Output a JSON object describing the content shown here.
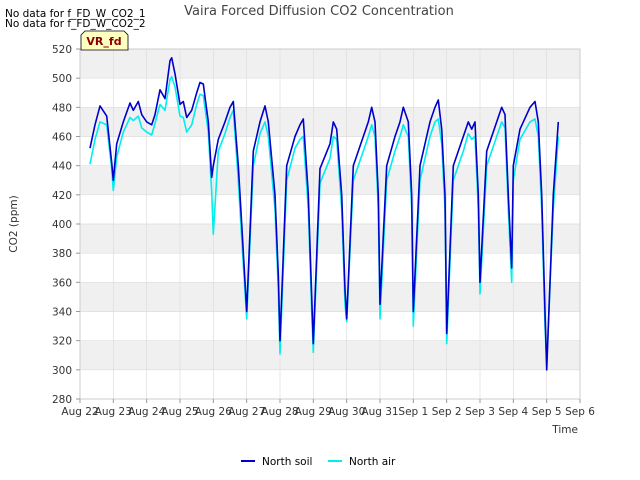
{
  "no_data_notes": [
    "No data for f_FD_W_CO2_1",
    "No data for f_FD_W_CO2_2"
  ],
  "badge": "VR_fd",
  "colors": {
    "north_soil": "#0000cc",
    "north_air": "#00eeee",
    "band": "#f0f0f0",
    "grid": "#dddddd",
    "badge_bg": "#ffffc0"
  },
  "chart_data": {
    "type": "line",
    "title": "Vaira Forced Diffusion CO2 Concentration",
    "xlabel": "Time",
    "ylabel": "CO2 (ppm)",
    "xlim": [
      0,
      15
    ],
    "ylim": [
      280,
      520
    ],
    "x_ticks": [
      0,
      1,
      2,
      3,
      4,
      5,
      6,
      7,
      8,
      9,
      10,
      11,
      12,
      13,
      14,
      15
    ],
    "x_tick_labels": [
      "Aug 22",
      "Aug 23",
      "Aug 24",
      "Aug 25",
      "Aug 26",
      "Aug 27",
      "Aug 28",
      "Aug 29",
      "Aug 30",
      "Aug 31",
      "Sep 1",
      "Sep 2",
      "Sep 3",
      "Sep 4",
      "Sep 5",
      "Sep 6"
    ],
    "y_ticks": [
      280,
      300,
      320,
      340,
      360,
      380,
      400,
      420,
      440,
      460,
      480,
      500,
      520
    ],
    "grid": true,
    "legend_position": "bottom",
    "series": [
      {
        "name": "North soil",
        "color_key": "north_soil",
        "x": [
          0.3,
          0.45,
          0.6,
          0.8,
          0.95,
          1.0,
          1.1,
          1.3,
          1.5,
          1.6,
          1.75,
          1.85,
          2.0,
          2.15,
          2.25,
          2.4,
          2.55,
          2.7,
          2.75,
          2.85,
          3.0,
          3.1,
          3.2,
          3.35,
          3.5,
          3.6,
          3.7,
          3.85,
          3.95,
          4.0,
          4.15,
          4.35,
          4.5,
          4.6,
          4.75,
          4.85,
          5.0,
          5.2,
          5.4,
          5.55,
          5.65,
          5.85,
          5.95,
          6.0,
          6.2,
          6.45,
          6.6,
          6.7,
          6.85,
          6.95,
          7.0,
          7.2,
          7.5,
          7.6,
          7.7,
          7.85,
          7.95,
          8.0,
          8.2,
          8.5,
          8.65,
          8.75,
          8.85,
          8.95,
          9.0,
          9.2,
          9.45,
          9.6,
          9.7,
          9.85,
          9.95,
          10.0,
          10.2,
          10.5,
          10.65,
          10.75,
          10.85,
          10.95,
          11.0,
          11.2,
          11.5,
          11.65,
          11.75,
          11.85,
          11.95,
          12.0,
          12.2,
          12.5,
          12.65,
          12.75,
          12.85,
          12.95,
          13.0,
          13.2,
          13.5,
          13.65,
          13.75,
          13.85,
          13.95,
          14.0,
          14.2,
          14.35
        ],
        "y": [
          452,
          468,
          481,
          474,
          442,
          430,
          455,
          470,
          483,
          478,
          484,
          475,
          470,
          468,
          475,
          492,
          486,
          512,
          514,
          503,
          482,
          484,
          473,
          478,
          490,
          497,
          496,
          470,
          432,
          440,
          458,
          470,
          480,
          484,
          440,
          400,
          340,
          450,
          470,
          481,
          470,
          420,
          365,
          320,
          440,
          460,
          468,
          472,
          420,
          350,
          318,
          438,
          455,
          470,
          465,
          420,
          355,
          335,
          440,
          460,
          470,
          480,
          470,
          420,
          345,
          440,
          460,
          470,
          480,
          470,
          420,
          340,
          440,
          470,
          480,
          485,
          465,
          420,
          325,
          440,
          460,
          470,
          465,
          470,
          420,
          360,
          450,
          470,
          480,
          475,
          420,
          370,
          440,
          465,
          480,
          484,
          470,
          420,
          340,
          300,
          420,
          470
        ]
      },
      {
        "name": "North air",
        "color_key": "north_air",
        "x": [
          0.3,
          0.45,
          0.6,
          0.8,
          0.95,
          1.0,
          1.1,
          1.3,
          1.5,
          1.6,
          1.75,
          1.85,
          2.0,
          2.15,
          2.25,
          2.4,
          2.55,
          2.7,
          2.75,
          2.85,
          3.0,
          3.1,
          3.2,
          3.35,
          3.5,
          3.6,
          3.7,
          3.85,
          3.95,
          4.0,
          4.15,
          4.35,
          4.5,
          4.6,
          4.75,
          4.85,
          5.0,
          5.2,
          5.4,
          5.55,
          5.65,
          5.85,
          5.95,
          6.0,
          6.2,
          6.45,
          6.6,
          6.7,
          6.85,
          6.95,
          7.0,
          7.2,
          7.5,
          7.6,
          7.7,
          7.85,
          7.95,
          8.0,
          8.2,
          8.5,
          8.65,
          8.75,
          8.85,
          8.95,
          9.0,
          9.2,
          9.45,
          9.6,
          9.7,
          9.85,
          9.95,
          10.0,
          10.2,
          10.5,
          10.65,
          10.75,
          10.85,
          10.95,
          11.0,
          11.2,
          11.5,
          11.65,
          11.75,
          11.85,
          11.95,
          12.0,
          12.2,
          12.5,
          12.65,
          12.75,
          12.85,
          12.95,
          13.0,
          13.2,
          13.5,
          13.65,
          13.75,
          13.85,
          13.95,
          14.0,
          14.2,
          14.35
        ],
        "y": [
          441,
          458,
          470,
          468,
          438,
          423,
          446,
          463,
          473,
          471,
          474,
          466,
          463,
          461,
          469,
          482,
          478,
          499,
          501,
          494,
          474,
          473,
          463,
          468,
          482,
          489,
          488,
          463,
          422,
          393,
          450,
          462,
          473,
          478,
          430,
          390,
          335,
          440,
          462,
          470,
          460,
          410,
          355,
          311,
          430,
          452,
          458,
          460,
          410,
          340,
          312,
          428,
          445,
          460,
          458,
          410,
          345,
          333,
          430,
          450,
          460,
          468,
          460,
          410,
          335,
          430,
          450,
          460,
          468,
          460,
          410,
          330,
          430,
          460,
          470,
          472,
          455,
          410,
          318,
          430,
          450,
          462,
          458,
          460,
          410,
          352,
          440,
          460,
          470,
          466,
          410,
          360,
          430,
          458,
          470,
          472,
          460,
          410,
          330,
          305,
          410,
          460
        ]
      }
    ]
  }
}
